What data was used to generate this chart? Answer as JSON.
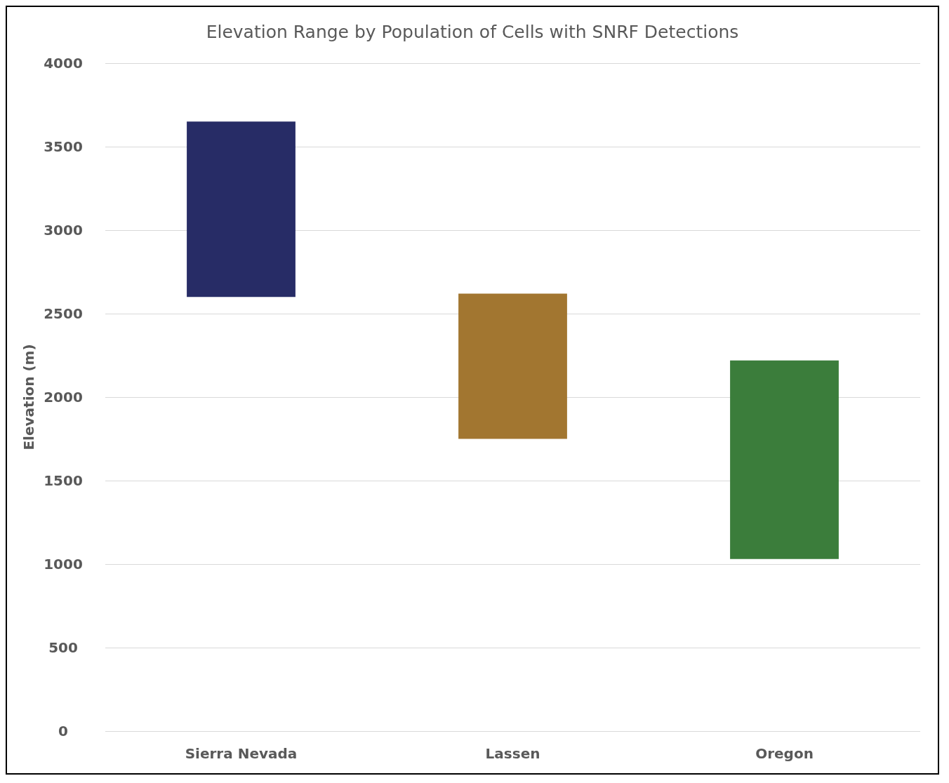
{
  "chart_data": {
    "type": "bar",
    "title": "Elevation Range by Population of Cells with SNRF Detections",
    "ylabel": "Elevation (m)",
    "categories": [
      "Sierra Nevada",
      "Lassen",
      "Oregon"
    ],
    "base": [
      2600,
      1750,
      1030
    ],
    "values": [
      1050,
      870,
      1190
    ],
    "colors": [
      "#272c66",
      "#a27630",
      "#3b7d3b"
    ],
    "ylim": [
      0,
      4000
    ],
    "yticks": [
      0,
      500,
      1000,
      1500,
      2000,
      2500,
      3000,
      3500,
      4000
    ],
    "grid": "y"
  }
}
